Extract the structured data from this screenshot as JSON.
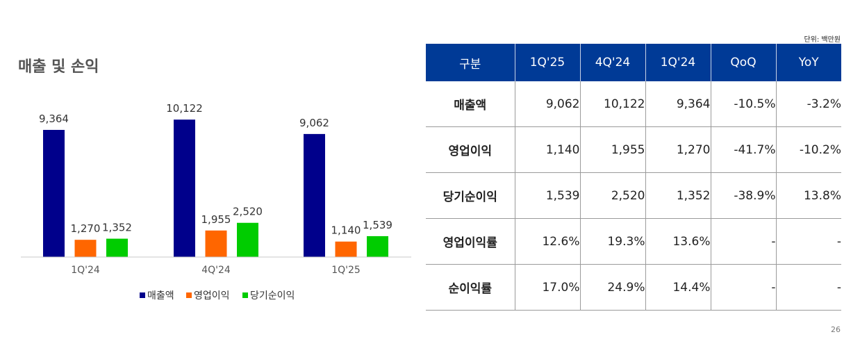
{
  "section_title": "매출 및 손익",
  "unit_label": "단위: 백만원",
  "page_number": "26",
  "chart_data": {
    "type": "bar",
    "categories": [
      "1Q'24",
      "4Q'24",
      "1Q'25"
    ],
    "series": [
      {
        "name": "매출액",
        "values": [
          9364,
          10122,
          9062
        ],
        "labels": [
          "9,364",
          "10,122",
          "9,062"
        ],
        "color": "#00008b"
      },
      {
        "name": "영업이익",
        "values": [
          1270,
          1955,
          1140
        ],
        "labels": [
          "1,270",
          "1,955",
          "1,140"
        ],
        "color": "#ff6600"
      },
      {
        "name": "당기순이익",
        "values": [
          1352,
          2520,
          1539
        ],
        "labels": [
          "1,352",
          "2,520",
          "1,539"
        ],
        "color": "#00cc00"
      }
    ],
    "title": "",
    "xlabel": "",
    "ylabel": "",
    "ylim": [
      0,
      11000
    ],
    "grid": false,
    "legend": "bottom-center"
  },
  "table": {
    "headers": [
      "구분",
      "1Q'25",
      "4Q'24",
      "1Q'24",
      "QoQ",
      "YoY"
    ],
    "rows": [
      [
        "매출액",
        "9,062",
        "10,122",
        "9,364",
        "-10.5%",
        "-3.2%"
      ],
      [
        "영업이익",
        "1,140",
        "1,955",
        "1,270",
        "-41.7%",
        "-10.2%"
      ],
      [
        "당기순이익",
        "1,539",
        "2,520",
        "1,352",
        "-38.9%",
        "13.8%"
      ],
      [
        "영업이익률",
        "12.6%",
        "19.3%",
        "13.6%",
        "-",
        "-"
      ],
      [
        "순이익률",
        "17.0%",
        "24.9%",
        "14.4%",
        "-",
        "-"
      ]
    ]
  },
  "colors": {
    "header_bg": "#003a96",
    "series_sales": "#00008b",
    "series_operating": "#ff6600",
    "series_net": "#00cc00"
  }
}
